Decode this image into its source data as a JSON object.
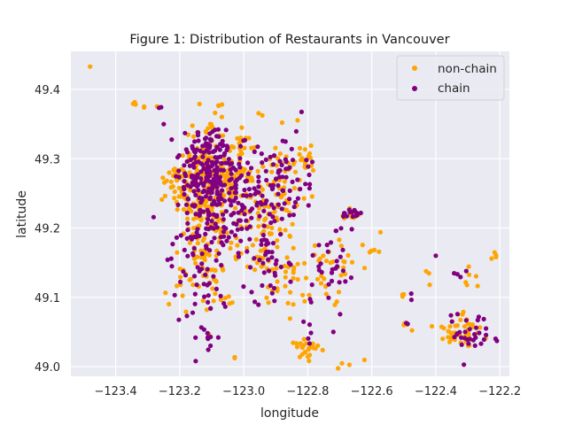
{
  "chart_data": {
    "type": "scatter",
    "title": "Figure 1: Distribution of Restaurants in Vancouver",
    "xlabel": "longitude",
    "ylabel": "latitude",
    "xlim": [
      -123.54,
      -122.17
    ],
    "ylim": [
      48.986,
      49.455
    ],
    "xticks": [
      -123.4,
      -123.2,
      -123.0,
      -122.8,
      -122.6,
      -122.4,
      -122.2
    ],
    "xtick_labels": [
      "−123.4",
      "−123.2",
      "−123.0",
      "−122.8",
      "−122.6",
      "−122.4",
      "−122.2"
    ],
    "yticks": [
      49.0,
      49.1,
      49.2,
      49.3,
      49.4
    ],
    "ytick_labels": [
      "49.0",
      "49.1",
      "49.2",
      "49.3",
      "49.4"
    ],
    "grid": true,
    "background": "#eaeaf2",
    "legend_position": "top-right",
    "series": [
      {
        "name": "non-chain",
        "color": "#ffa500",
        "clusters": [
          {
            "x": -123.48,
            "y": 49.433,
            "sx": 0.001,
            "sy": 0.001,
            "n": 1
          },
          {
            "x": -123.345,
            "y": 49.378,
            "sx": 0.006,
            "sy": 0.002,
            "n": 4
          },
          {
            "x": -123.31,
            "y": 49.374,
            "sx": 0.003,
            "sy": 0.002,
            "n": 2
          },
          {
            "x": -123.27,
            "y": 49.372,
            "sx": 0.003,
            "sy": 0.002,
            "n": 2
          },
          {
            "x": -123.08,
            "y": 49.378,
            "sx": 0.006,
            "sy": 0.004,
            "n": 3
          },
          {
            "x": -123.1,
            "y": 49.345,
            "sx": 0.012,
            "sy": 0.012,
            "n": 8
          },
          {
            "x": -123.0,
            "y": 49.322,
            "sx": 0.012,
            "sy": 0.008,
            "n": 5
          },
          {
            "x": -123.21,
            "y": 49.275,
            "sx": 0.02,
            "sy": 0.008,
            "n": 20
          },
          {
            "x": -123.12,
            "y": 49.27,
            "sx": 0.05,
            "sy": 0.035,
            "n": 170
          },
          {
            "x": -123.02,
            "y": 49.255,
            "sx": 0.045,
            "sy": 0.04,
            "n": 70
          },
          {
            "x": -122.88,
            "y": 49.27,
            "sx": 0.05,
            "sy": 0.035,
            "n": 60
          },
          {
            "x": -122.8,
            "y": 49.3,
            "sx": 0.015,
            "sy": 0.01,
            "n": 12
          },
          {
            "x": -122.66,
            "y": 49.22,
            "sx": 0.015,
            "sy": 0.006,
            "n": 10
          },
          {
            "x": -122.58,
            "y": 49.175,
            "sx": 0.03,
            "sy": 0.015,
            "n": 6
          },
          {
            "x": -122.72,
            "y": 49.14,
            "sx": 0.04,
            "sy": 0.03,
            "n": 30
          },
          {
            "x": -123.12,
            "y": 49.16,
            "sx": 0.05,
            "sy": 0.05,
            "n": 90
          },
          {
            "x": -122.92,
            "y": 49.17,
            "sx": 0.04,
            "sy": 0.04,
            "n": 60
          },
          {
            "x": -122.84,
            "y": 49.12,
            "sx": 0.03,
            "sy": 0.025,
            "n": 20
          },
          {
            "x": -122.8,
            "y": 49.025,
            "sx": 0.02,
            "sy": 0.008,
            "n": 25
          },
          {
            "x": -122.5,
            "y": 49.06,
            "sx": 0.01,
            "sy": 0.004,
            "n": 4
          },
          {
            "x": -122.5,
            "y": 49.1,
            "sx": 0.006,
            "sy": 0.004,
            "n": 3
          },
          {
            "x": -122.32,
            "y": 49.05,
            "sx": 0.04,
            "sy": 0.015,
            "n": 45
          },
          {
            "x": -122.3,
            "y": 49.13,
            "sx": 0.02,
            "sy": 0.01,
            "n": 6
          },
          {
            "x": -122.21,
            "y": 49.16,
            "sx": 0.01,
            "sy": 0.006,
            "n": 4
          },
          {
            "x": -122.68,
            "y": 49.0,
            "sx": 0.02,
            "sy": 0.01,
            "n": 4
          },
          {
            "x": -123.05,
            "y": 49.08,
            "sx": 0.01,
            "sy": 0.01,
            "n": 3
          },
          {
            "x": -123.02,
            "y": 49.01,
            "sx": 0.01,
            "sy": 0.005,
            "n": 2
          },
          {
            "x": -122.42,
            "y": 49.13,
            "sx": 0.01,
            "sy": 0.015,
            "n": 3
          }
        ]
      },
      {
        "name": "chain",
        "color": "#800080",
        "clusters": [
          {
            "x": -123.26,
            "y": 49.374,
            "sx": 0.003,
            "sy": 0.002,
            "n": 2
          },
          {
            "x": -123.25,
            "y": 49.35,
            "sx": 0.003,
            "sy": 0.002,
            "n": 1
          },
          {
            "x": -123.12,
            "y": 49.325,
            "sx": 0.04,
            "sy": 0.01,
            "n": 25
          },
          {
            "x": -123.12,
            "y": 49.27,
            "sx": 0.05,
            "sy": 0.03,
            "n": 180
          },
          {
            "x": -123.02,
            "y": 49.25,
            "sx": 0.045,
            "sy": 0.04,
            "n": 80
          },
          {
            "x": -122.88,
            "y": 49.27,
            "sx": 0.05,
            "sy": 0.03,
            "n": 60
          },
          {
            "x": -122.66,
            "y": 49.22,
            "sx": 0.02,
            "sy": 0.004,
            "n": 14
          },
          {
            "x": -123.12,
            "y": 49.17,
            "sx": 0.05,
            "sy": 0.05,
            "n": 90
          },
          {
            "x": -122.92,
            "y": 49.17,
            "sx": 0.04,
            "sy": 0.04,
            "n": 50
          },
          {
            "x": -122.72,
            "y": 49.14,
            "sx": 0.03,
            "sy": 0.03,
            "n": 30
          },
          {
            "x": -122.8,
            "y": 49.05,
            "sx": 0.01,
            "sy": 0.02,
            "n": 6
          },
          {
            "x": -122.3,
            "y": 49.05,
            "sx": 0.035,
            "sy": 0.015,
            "n": 30
          },
          {
            "x": -122.4,
            "y": 49.16,
            "sx": 0.004,
            "sy": 0.003,
            "n": 1
          },
          {
            "x": -122.32,
            "y": 49.13,
            "sx": 0.01,
            "sy": 0.004,
            "n": 4
          },
          {
            "x": -122.49,
            "y": 49.06,
            "sx": 0.005,
            "sy": 0.003,
            "n": 2
          },
          {
            "x": -122.48,
            "y": 49.1,
            "sx": 0.004,
            "sy": 0.003,
            "n": 2
          },
          {
            "x": -123.1,
            "y": 49.04,
            "sx": 0.01,
            "sy": 0.01,
            "n": 5
          },
          {
            "x": -123.15,
            "y": 49.008,
            "sx": 0.002,
            "sy": 0.002,
            "n": 1
          },
          {
            "x": -122.72,
            "y": 49.05,
            "sx": 0.004,
            "sy": 0.004,
            "n": 1
          },
          {
            "x": -123.06,
            "y": 49.09,
            "sx": 0.006,
            "sy": 0.004,
            "n": 2
          },
          {
            "x": -122.96,
            "y": 49.09,
            "sx": 0.006,
            "sy": 0.004,
            "n": 2
          },
          {
            "x": -122.21,
            "y": 49.04,
            "sx": 0.004,
            "sy": 0.004,
            "n": 2
          }
        ]
      }
    ]
  }
}
